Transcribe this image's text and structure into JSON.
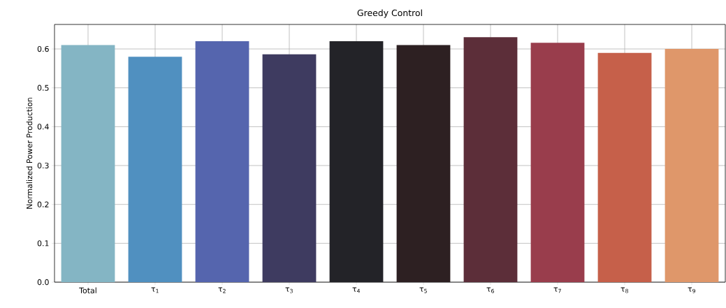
{
  "chart_data": {
    "type": "bar",
    "title": "Greedy Control",
    "ylabel": "Normalized Power Production",
    "categories": [
      "Total",
      "τ$_{1}$",
      "τ$_{2}$",
      "τ$_{3}$",
      "τ$_{4}$",
      "τ$_{5}$",
      "τ$_{6}$",
      "τ$_{7}$",
      "τ$_{8}$",
      "τ$_{9}$"
    ],
    "values": [
      0.61,
      0.58,
      0.62,
      0.586,
      0.62,
      0.61,
      0.63,
      0.616,
      0.59,
      0.6
    ],
    "colors": [
      "#84b5c4",
      "#5090c0",
      "#5565ae",
      "#3e3b60",
      "#232328",
      "#2d2022",
      "#5c2e39",
      "#993d4c",
      "#c6604a",
      "#df976a"
    ],
    "ylim": [
      0,
      0.663
    ],
    "yticks": [
      {
        "value": 0,
        "label": "0.0"
      },
      0.1,
      0.2,
      0.3,
      0.4,
      0.5,
      0.6
    ],
    "grid": true
  }
}
